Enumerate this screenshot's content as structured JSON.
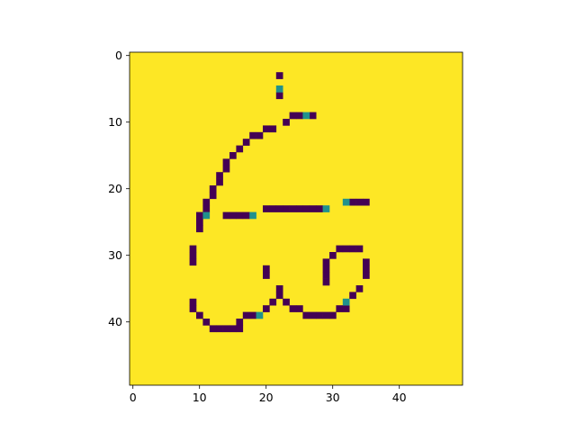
{
  "chart_data": {
    "type": "heatmap",
    "title": "",
    "xlabel": "",
    "ylabel": "",
    "grid_size": [
      50,
      50
    ],
    "colormap": "viridis",
    "background_color": "#fde725",
    "stroke_color": "#440154",
    "highlight_color": "#21918c",
    "xlim": [
      -0.5,
      49.5
    ],
    "ylim": [
      49.5,
      -0.5
    ],
    "x_ticks": [
      0,
      10,
      20,
      30,
      40
    ],
    "y_ticks": [
      0,
      10,
      20,
      30,
      40
    ],
    "x_tick_labels": [
      "0",
      "10",
      "20",
      "30",
      "40"
    ],
    "y_tick_labels": [
      "0",
      "10",
      "20",
      "30",
      "40"
    ],
    "grid": false,
    "dark_cells": [
      [
        22,
        3
      ],
      [
        22,
        6
      ],
      [
        24,
        9
      ],
      [
        25,
        9
      ],
      [
        27,
        9
      ],
      [
        23,
        10
      ],
      [
        21,
        11
      ],
      [
        20,
        11
      ],
      [
        19,
        12
      ],
      [
        18,
        12
      ],
      [
        17,
        13
      ],
      [
        16,
        14
      ],
      [
        15,
        15
      ],
      [
        14,
        16
      ],
      [
        14,
        17
      ],
      [
        13,
        18
      ],
      [
        13,
        19
      ],
      [
        12,
        20
      ],
      [
        12,
        21
      ],
      [
        11,
        22
      ],
      [
        11,
        23
      ],
      [
        10,
        24
      ],
      [
        10,
        25
      ],
      [
        10,
        26
      ],
      [
        14,
        24
      ],
      [
        15,
        24
      ],
      [
        16,
        24
      ],
      [
        17,
        24
      ],
      [
        20,
        23
      ],
      [
        21,
        23
      ],
      [
        22,
        23
      ],
      [
        23,
        23
      ],
      [
        24,
        23
      ],
      [
        25,
        23
      ],
      [
        26,
        23
      ],
      [
        27,
        23
      ],
      [
        28,
        23
      ],
      [
        33,
        22
      ],
      [
        34,
        22
      ],
      [
        35,
        22
      ],
      [
        9,
        29
      ],
      [
        9,
        30
      ],
      [
        9,
        31
      ],
      [
        31,
        29
      ],
      [
        32,
        29
      ],
      [
        33,
        29
      ],
      [
        34,
        29
      ],
      [
        30,
        30
      ],
      [
        20,
        32
      ],
      [
        20,
        33
      ],
      [
        29,
        31
      ],
      [
        29,
        32
      ],
      [
        29,
        33
      ],
      [
        29,
        34
      ],
      [
        35,
        31
      ],
      [
        35,
        32
      ],
      [
        35,
        33
      ],
      [
        34,
        35
      ],
      [
        22,
        35
      ],
      [
        22,
        36
      ],
      [
        21,
        37
      ],
      [
        23,
        37
      ],
      [
        33,
        36
      ],
      [
        20,
        38
      ],
      [
        24,
        38
      ],
      [
        25,
        38
      ],
      [
        31,
        38
      ],
      [
        32,
        38
      ],
      [
        9,
        37
      ],
      [
        9,
        38
      ],
      [
        10,
        39
      ],
      [
        17,
        39
      ],
      [
        18,
        39
      ],
      [
        26,
        39
      ],
      [
        27,
        39
      ],
      [
        28,
        39
      ],
      [
        29,
        39
      ],
      [
        30,
        39
      ],
      [
        11,
        40
      ],
      [
        16,
        40
      ],
      [
        12,
        41
      ],
      [
        13,
        41
      ],
      [
        14,
        41
      ],
      [
        15,
        41
      ],
      [
        16,
        41
      ]
    ],
    "mid_cells": [
      [
        22,
        5
      ],
      [
        26,
        9
      ],
      [
        11,
        24
      ],
      [
        18,
        24
      ],
      [
        29,
        23
      ],
      [
        32,
        22
      ],
      [
        32,
        37
      ],
      [
        19,
        39
      ]
    ]
  }
}
